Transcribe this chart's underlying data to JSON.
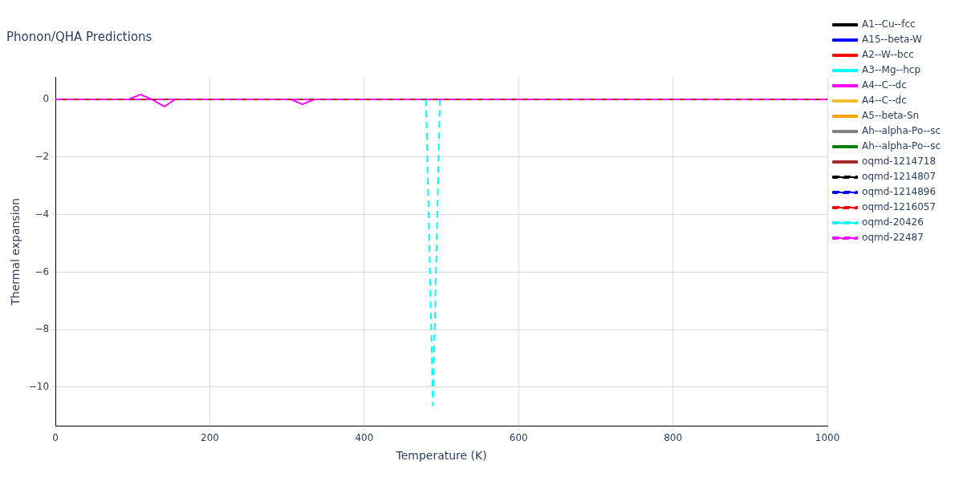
{
  "chart_data": {
    "type": "line",
    "title": "Phonon/QHA Predictions",
    "xlabel": "Temperature (K)",
    "ylabel": "Thermal expansion",
    "xlim": [
      0,
      1000
    ],
    "xticks": [
      0,
      200,
      400,
      600,
      800,
      1000
    ],
    "ylim": [
      -11.36,
      0.78
    ],
    "yticks": [
      -10,
      -8,
      -6,
      -4,
      -2,
      0
    ],
    "grid": true,
    "legend": "right",
    "marker": "none",
    "series": [
      {
        "name": "A1--Cu--fcc",
        "color": "#000000",
        "line_style": "solid",
        "values": [
          null
        ]
      },
      {
        "name": "A15--beta-W",
        "color": "#0000ff",
        "line_style": "solid",
        "values": [
          null
        ]
      },
      {
        "name": "A2--W--bcc",
        "color": "#ff0000",
        "line_style": "solid",
        "values": [
          null
        ]
      },
      {
        "name": "A3--Mg--hcp",
        "color": "#00ffff",
        "line_style": "solid",
        "values": [
          null
        ]
      },
      {
        "name": "A4--C--dc",
        "color": "#ff00ff",
        "line_style": "solid",
        "x": [
          95,
          110,
          125,
          141,
          155,
          230,
          305,
          320,
          335
        ],
        "values": [
          0,
          0.17,
          0,
          -0.25,
          0,
          null,
          0,
          -0.17,
          0
        ]
      },
      {
        "name": "A4--C--dc",
        "color": "#f0c030",
        "line_style": "solid",
        "values": [
          null
        ]
      },
      {
        "name": "A5--beta-Sn",
        "color": "#ffa500",
        "line_style": "solid",
        "values": [
          null
        ]
      },
      {
        "name": "Ah--alpha-Po--sc",
        "color": "#808080",
        "line_style": "solid",
        "values": [
          null
        ]
      },
      {
        "name": "Ah--alpha-Po--sc",
        "color": "#008000",
        "line_style": "solid",
        "values": [
          null
        ]
      },
      {
        "name": "oqmd-1214718",
        "color": "#a52a2a",
        "line_style": "solid",
        "x": [
          0,
          1000
        ],
        "values": [
          0,
          0
        ]
      },
      {
        "name": "oqmd-1214807",
        "color": "#000000",
        "line_style": "dashed",
        "values": [
          null
        ]
      },
      {
        "name": "oqmd-1214896",
        "color": "#0000ff",
        "line_style": "dashed",
        "values": [
          null
        ]
      },
      {
        "name": "oqmd-1216057",
        "color": "#ff0000",
        "line_style": "dashed",
        "values": [
          null
        ]
      },
      {
        "name": "oqmd-20426",
        "color": "#00ffff",
        "line_style": "dashed",
        "x": [
          480,
          489,
          498
        ],
        "values": [
          0,
          -10.63,
          0
        ]
      },
      {
        "name": "oqmd-22487",
        "color": "#ff00ff",
        "line_style": "dashed",
        "x": [
          0,
          1000
        ],
        "values": [
          0,
          0
        ]
      }
    ]
  }
}
